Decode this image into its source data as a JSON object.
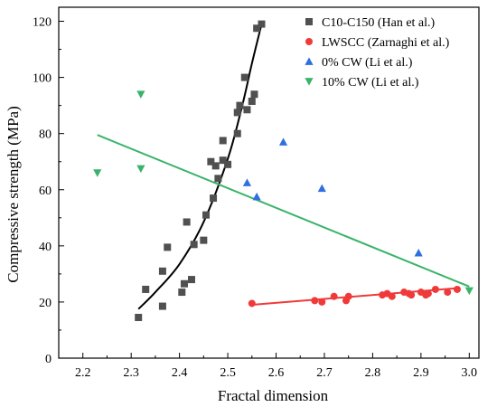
{
  "chart_data": {
    "type": "scatter",
    "xlabel": "Fractal dimension",
    "ylabel": "Compressive strength (MPa)",
    "xlim": [
      2.15,
      3.02
    ],
    "ylim": [
      0,
      125
    ],
    "xticks": [
      2.2,
      2.3,
      2.4,
      2.5,
      2.6,
      2.7,
      2.8,
      2.9,
      3.0
    ],
    "yticks": [
      0,
      20,
      40,
      60,
      80,
      100,
      120
    ],
    "xtick_labels": [
      "2.2",
      "2.3",
      "2.4",
      "2.5",
      "2.6",
      "2.7",
      "2.8",
      "2.9",
      "3.0"
    ],
    "ytick_labels": [
      "0",
      "20",
      "40",
      "60",
      "80",
      "100",
      "120"
    ],
    "grid": false,
    "legend_position": "top-right",
    "series": [
      {
        "name": "C10-C150 (Han et al.)",
        "marker": "square",
        "color": "#505050",
        "points": [
          [
            2.315,
            14.5
          ],
          [
            2.33,
            24.5
          ],
          [
            2.365,
            18.5
          ],
          [
            2.365,
            31
          ],
          [
            2.375,
            39.5
          ],
          [
            2.405,
            23.5
          ],
          [
            2.41,
            26.5
          ],
          [
            2.415,
            48.5
          ],
          [
            2.425,
            28
          ],
          [
            2.43,
            40.5
          ],
          [
            2.45,
            42
          ],
          [
            2.455,
            51
          ],
          [
            2.465,
            70
          ],
          [
            2.47,
            57
          ],
          [
            2.475,
            68.5
          ],
          [
            2.48,
            64
          ],
          [
            2.49,
            70.5
          ],
          [
            2.49,
            77.5
          ],
          [
            2.5,
            69
          ],
          [
            2.52,
            80
          ],
          [
            2.52,
            87.5
          ],
          [
            2.525,
            90
          ],
          [
            2.535,
            100
          ],
          [
            2.54,
            88.5
          ],
          [
            2.55,
            91.5
          ],
          [
            2.555,
            94
          ],
          [
            2.56,
            117.5
          ],
          [
            2.57,
            119
          ]
        ]
      },
      {
        "name": "LWSCC (Zarnaghi et al.)",
        "marker": "circle",
        "color": "#f03a3a",
        "points": [
          [
            2.55,
            19.5
          ],
          [
            2.68,
            20.5
          ],
          [
            2.695,
            20
          ],
          [
            2.72,
            22
          ],
          [
            2.745,
            20.5
          ],
          [
            2.75,
            22
          ],
          [
            2.82,
            22.5
          ],
          [
            2.83,
            23
          ],
          [
            2.84,
            22
          ],
          [
            2.865,
            23.5
          ],
          [
            2.875,
            23
          ],
          [
            2.88,
            22.5
          ],
          [
            2.9,
            23.5
          ],
          [
            2.91,
            22.5
          ],
          [
            2.915,
            23
          ],
          [
            2.93,
            24.5
          ],
          [
            2.955,
            23.5
          ],
          [
            2.975,
            24.5
          ]
        ]
      },
      {
        "name": "0% CW (Li et al.)",
        "marker": "triangle-up",
        "color": "#2f6fe0",
        "points": [
          [
            2.54,
            62.5
          ],
          [
            2.56,
            57.5
          ],
          [
            2.615,
            77
          ],
          [
            2.695,
            60.5
          ],
          [
            2.895,
            37.5
          ]
        ]
      },
      {
        "name": "10% CW (Li et al.)",
        "marker": "triangle-down",
        "color": "#3ab36a",
        "points": [
          [
            2.23,
            66
          ],
          [
            2.32,
            94
          ],
          [
            2.32,
            67.5
          ],
          [
            3.0,
            24
          ]
        ]
      }
    ],
    "fit_lines": [
      {
        "series": "C10-C150 (Han et al.)",
        "kind": "exponential",
        "color": "#000000",
        "points": [
          [
            2.315,
            17.5
          ],
          [
            2.35,
            23.5
          ],
          [
            2.4,
            33.5
          ],
          [
            2.45,
            48.5
          ],
          [
            2.5,
            71
          ],
          [
            2.53,
            90
          ],
          [
            2.55,
            105
          ],
          [
            2.57,
            119
          ]
        ]
      },
      {
        "series": "LWSCC (Zarnaghi et al.)",
        "kind": "linear",
        "color": "#f03a3a",
        "points": [
          [
            2.55,
            19
          ],
          [
            2.98,
            25
          ]
        ]
      },
      {
        "series": "10% CW (Li et al.)",
        "kind": "linear",
        "color": "#3ab36a",
        "points": [
          [
            2.23,
            79.5
          ],
          [
            3.0,
            25.5
          ]
        ]
      }
    ]
  }
}
